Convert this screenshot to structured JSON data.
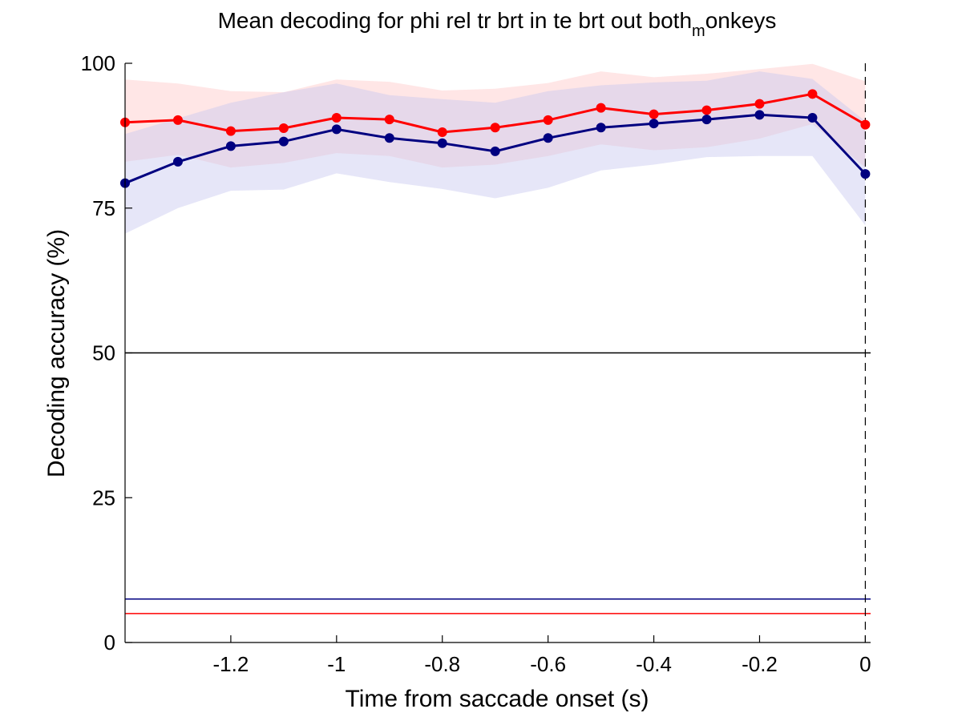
{
  "chart_data": {
    "type": "line",
    "title": "Mean decoding for phi rel tr brt in te brt out  both",
    "title_subscript": "m",
    "title_suffix": "onkeys",
    "xlabel": "Time from saccade onset (s)",
    "ylabel": "Decoding accuracy (%)",
    "xlim": [
      -1.4,
      0.01
    ],
    "ylim": [
      0,
      100
    ],
    "xticks": [
      -1.2,
      -1,
      -0.8,
      -0.6,
      -0.4,
      -0.2,
      0
    ],
    "xtick_labels": [
      "-1.2",
      "-1",
      "-0.8",
      "-0.6",
      "-0.4",
      "-0.2",
      "0"
    ],
    "yticks": [
      0,
      25,
      50,
      75,
      100
    ],
    "ytick_labels": [
      "0",
      "25",
      "50",
      "75",
      "100"
    ],
    "grid": false,
    "x": [
      -1.4,
      -1.3,
      -1.2,
      -1.1,
      -1.0,
      -0.9,
      -0.8,
      -0.7,
      -0.6,
      -0.5,
      -0.4,
      -0.3,
      -0.2,
      -0.1,
      0.0
    ],
    "series": [
      {
        "color": "#ff0000",
        "band_color": "#ffc8c8",
        "values": [
          89.8,
          90.2,
          88.3,
          88.8,
          90.6,
          90.3,
          88.1,
          88.9,
          90.2,
          92.3,
          91.2,
          91.9,
          93.0,
          94.7,
          89.4
        ],
        "upper": [
          97.2,
          96.5,
          95.2,
          95.0,
          97.2,
          96.8,
          95.3,
          95.6,
          96.6,
          98.6,
          97.6,
          98.2,
          99.0,
          99.9,
          96.9
        ],
        "lower": [
          83.0,
          84.2,
          82.0,
          82.8,
          84.5,
          84.0,
          82.0,
          82.5,
          84.0,
          86.0,
          85.0,
          85.5,
          87.0,
          89.5,
          82.0
        ]
      },
      {
        "color": "#000080",
        "band_color": "#c8c8f0",
        "values": [
          79.3,
          83.0,
          85.7,
          86.5,
          88.6,
          87.1,
          86.2,
          84.8,
          87.1,
          88.9,
          89.6,
          90.3,
          91.1,
          90.6,
          80.9
        ],
        "upper": [
          87.8,
          90.5,
          93.2,
          95.0,
          96.5,
          94.5,
          93.8,
          93.2,
          95.2,
          96.2,
          96.7,
          97.0,
          98.6,
          97.3,
          90.0
        ],
        "lower": [
          70.6,
          75.0,
          78.0,
          78.2,
          81.0,
          79.5,
          78.3,
          76.7,
          78.5,
          81.5,
          82.5,
          83.8,
          84.0,
          84.0,
          72.0
        ]
      }
    ],
    "reference_lines": [
      {
        "y": 50,
        "color": "#000000"
      },
      {
        "y": 7.5,
        "color": "#000080"
      },
      {
        "y": 5,
        "color": "#ff0000"
      }
    ],
    "vertical_marker": {
      "x": 0,
      "style": "dashed",
      "color": "#000000"
    }
  }
}
